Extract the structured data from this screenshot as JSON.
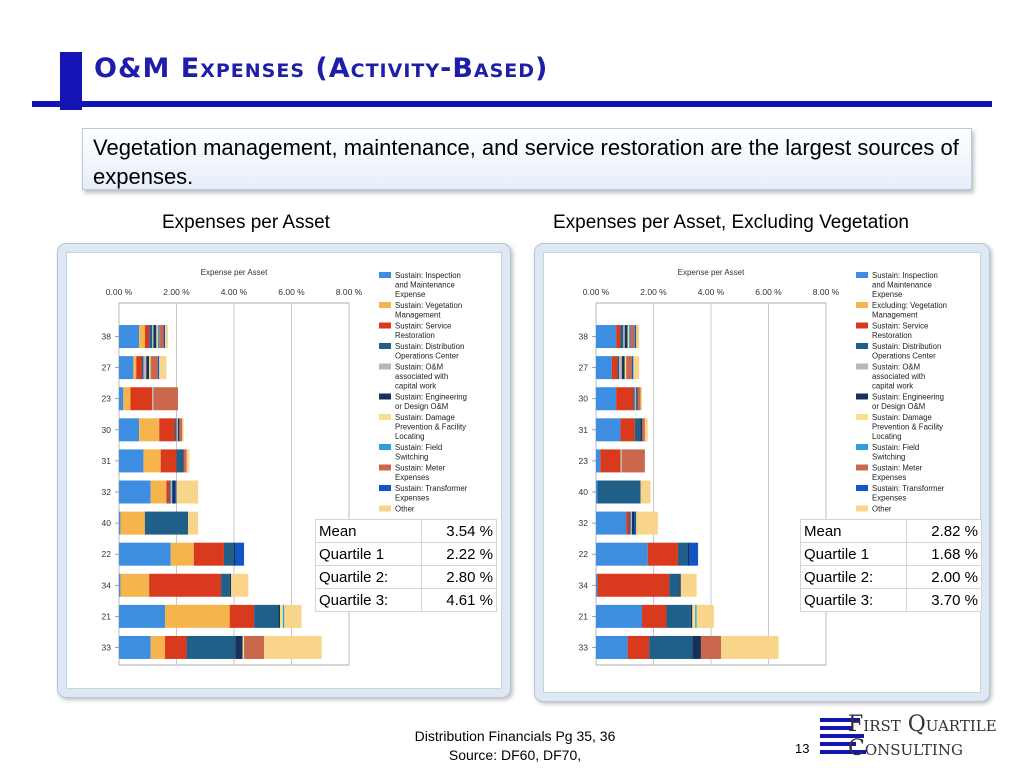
{
  "slide": {
    "title": "O&M Expenses (Activity-Based)",
    "callout": "Vegetation management, maintenance, and service restoration are the largest sources of expenses.",
    "footer_line1": "Distribution Financials Pg 35, 36",
    "footer_line2": "Source: DF60, DF70,",
    "page_number": "13",
    "logo_line1": "First Quartile",
    "logo_line2": "Consulting",
    "accent_color": "#1414b4"
  },
  "chart_data": [
    {
      "type": "bar",
      "orientation": "horizontal",
      "stacked": true,
      "heading": "Expenses per Asset",
      "title": "Expense per Asset",
      "xlim": [
        0,
        8
      ],
      "xticks": [
        "0.00 %",
        "2.00 %",
        "4.00 %",
        "6.00 %",
        "8.00 %"
      ],
      "categories": [
        "38",
        "27",
        "23",
        "30",
        "31",
        "32",
        "40",
        "22",
        "34",
        "21",
        "33"
      ],
      "series": [
        {
          "name": "Sustain: Inspection and Maintenance Expense",
          "color": "#3d8ee0",
          "values": [
            0.7,
            0.5,
            0.15,
            0.7,
            0.85,
            1.1,
            0.05,
            1.8,
            0.05,
            1.6,
            1.1
          ]
        },
        {
          "name": "Sustain: Vegetation Management",
          "color": "#f6b44c",
          "values": [
            0.2,
            0.1,
            0.25,
            0.7,
            0.6,
            0.55,
            0.85,
            0.8,
            1.0,
            2.25,
            0.5
          ]
        },
        {
          "name": "Sustain: Service Restoration",
          "color": "#d9391c",
          "values": [
            0.15,
            0.2,
            0.75,
            0.55,
            0.55,
            0.1,
            0.0,
            1.05,
            2.5,
            0.85,
            0.75
          ]
        },
        {
          "name": "Sustain: Distribution Operations Center",
          "color": "#1f5f88",
          "values": [
            0.1,
            0.05,
            0.0,
            0.05,
            0.2,
            0.05,
            1.5,
            0.35,
            0.3,
            0.85,
            1.7
          ]
        },
        {
          "name": "Sustain: O&M associated with capital work",
          "color": "#b8b8b8",
          "values": [
            0.05,
            0.1,
            0.05,
            0.05,
            0.0,
            0.05,
            0.0,
            0.0,
            0.0,
            0.0,
            0.0
          ]
        },
        {
          "name": "Sustain: Engineering or Design O&M",
          "color": "#17315e",
          "values": [
            0.1,
            0.1,
            0.0,
            0.05,
            0.05,
            0.1,
            0.0,
            0.05,
            0.05,
            0.05,
            0.25
          ]
        },
        {
          "name": "Sustain: Damage Prevention & Facility Locating",
          "color": "#f6e08a",
          "values": [
            0.05,
            0.05,
            0.0,
            0.0,
            0.0,
            0.0,
            0.0,
            0.0,
            0.0,
            0.1,
            0.05
          ]
        },
        {
          "name": "Sustain: Field Switching",
          "color": "#2aa0dc",
          "values": [
            0.05,
            0.0,
            0.0,
            0.0,
            0.0,
            0.0,
            0.0,
            0.0,
            0.0,
            0.05,
            0.0
          ]
        },
        {
          "name": "Sustain: Meter Expenses",
          "color": "#c9684d",
          "values": [
            0.15,
            0.25,
            0.85,
            0.1,
            0.1,
            0.0,
            0.0,
            0.0,
            0.0,
            0.0,
            0.7
          ]
        },
        {
          "name": "Sustain: Transformer Expenses",
          "color": "#1255c7",
          "values": [
            0.05,
            0.05,
            0.0,
            0.0,
            0.0,
            0.05,
            0.0,
            0.3,
            0.0,
            0.0,
            0.0
          ]
        },
        {
          "name": "Other",
          "color": "#f8d58a",
          "values": [
            0.1,
            0.25,
            0.0,
            0.05,
            0.1,
            0.75,
            0.35,
            0.0,
            0.6,
            0.6,
            2.0
          ]
        }
      ],
      "stats": [
        {
          "label": "Mean",
          "value": "3.54 %"
        },
        {
          "label": "Quartile 1",
          "value": "2.22 %"
        },
        {
          "label": "Quartile 2:",
          "value": "2.80 %"
        },
        {
          "label": "Quartile 3:",
          "value": "4.61 %"
        }
      ]
    },
    {
      "type": "bar",
      "orientation": "horizontal",
      "stacked": true,
      "heading": "Expenses per Asset, Excluding Vegetation",
      "title": "Expense per Asset",
      "xlim": [
        0,
        8
      ],
      "xticks": [
        "0.00 %",
        "2.00 %",
        "4.00 %",
        "6.00 %",
        "8.00 %"
      ],
      "categories": [
        "38",
        "27",
        "30",
        "31",
        "23",
        "40",
        "32",
        "22",
        "34",
        "21",
        "33"
      ],
      "series": [
        {
          "name": "Sustain: Inspection and Maintenance Expense",
          "color": "#3d8ee0",
          "values": [
            0.7,
            0.55,
            0.7,
            0.85,
            0.15,
            0.05,
            1.05,
            1.8,
            0.05,
            1.6,
            1.1
          ]
        },
        {
          "name": "Excluding: Vegetation Management",
          "color": "#f6b44c",
          "values": [
            0.0,
            0.0,
            0.0,
            0.0,
            0.0,
            0.0,
            0.0,
            0.0,
            0.0,
            0.0,
            0.0
          ]
        },
        {
          "name": "Sustain: Service Restoration",
          "color": "#d9391c",
          "values": [
            0.15,
            0.2,
            0.6,
            0.5,
            0.7,
            0.0,
            0.1,
            1.05,
            2.5,
            0.85,
            0.75
          ]
        },
        {
          "name": "Sustain: Distribution Operations Center",
          "color": "#1f5f88",
          "values": [
            0.1,
            0.05,
            0.05,
            0.2,
            0.0,
            1.5,
            0.05,
            0.35,
            0.35,
            0.85,
            1.5
          ]
        },
        {
          "name": "Sustain: O&M associated with capital work",
          "color": "#b8b8b8",
          "values": [
            0.05,
            0.1,
            0.05,
            0.0,
            0.05,
            0.0,
            0.05,
            0.0,
            0.0,
            0.0,
            0.0
          ]
        },
        {
          "name": "Sustain: Engineering or Design O&M",
          "color": "#17315e",
          "values": [
            0.1,
            0.1,
            0.05,
            0.05,
            0.0,
            0.0,
            0.1,
            0.05,
            0.05,
            0.05,
            0.3
          ]
        },
        {
          "name": "Sustain: Damage Prevention & Facility Locating",
          "color": "#f6e08a",
          "values": [
            0.05,
            0.05,
            0.0,
            0.0,
            0.0,
            0.0,
            0.0,
            0.0,
            0.0,
            0.1,
            0.0
          ]
        },
        {
          "name": "Sustain: Field Switching",
          "color": "#2aa0dc",
          "values": [
            0.05,
            0.0,
            0.0,
            0.0,
            0.0,
            0.0,
            0.0,
            0.0,
            0.0,
            0.05,
            0.0
          ]
        },
        {
          "name": "Sustain: Meter Expenses",
          "color": "#c9684d",
          "values": [
            0.15,
            0.2,
            0.1,
            0.1,
            0.8,
            0.0,
            0.0,
            0.0,
            0.0,
            0.0,
            0.7
          ]
        },
        {
          "name": "Sustain: Transformer Expenses",
          "color": "#1255c7",
          "values": [
            0.05,
            0.05,
            0.0,
            0.0,
            0.0,
            0.0,
            0.05,
            0.3,
            0.0,
            0.0,
            0.0
          ]
        },
        {
          "name": "Other",
          "color": "#f8d58a",
          "values": [
            0.1,
            0.2,
            0.05,
            0.1,
            0.0,
            0.35,
            0.75,
            0.0,
            0.55,
            0.6,
            2.0
          ]
        }
      ],
      "stats": [
        {
          "label": "Mean",
          "value": "2.82 %"
        },
        {
          "label": "Quartile 1",
          "value": "1.68 %"
        },
        {
          "label": "Quartile 2:",
          "value": "2.00 %"
        },
        {
          "label": "Quartile 3:",
          "value": "3.70 %"
        }
      ]
    }
  ]
}
